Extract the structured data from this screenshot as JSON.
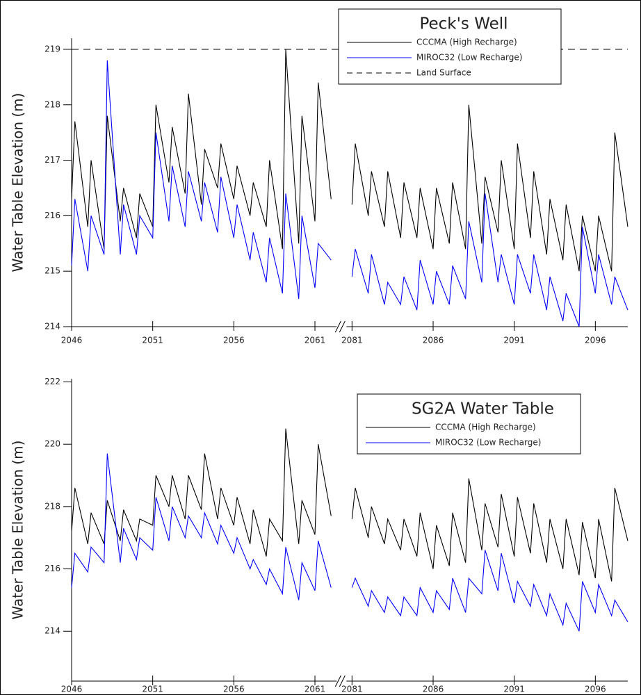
{
  "chart_data": [
    {
      "type": "line",
      "title": "Peck's Well",
      "y_label": "Water Table Elevation (m)",
      "x": [
        2046,
        2046.2,
        2047,
        2047.2,
        2048,
        2048.2,
        2049,
        2049.2,
        2050,
        2050.2,
        2051,
        2051.2,
        2052,
        2052.2,
        2053,
        2053.2,
        2054,
        2054.2,
        2055,
        2055.2,
        2056,
        2056.2,
        2057,
        2057.2,
        2058,
        2058.2,
        2059,
        2059.2,
        2060,
        2060.2,
        2061,
        2061.2,
        2062,
        null,
        2081,
        2081.2,
        2082,
        2082.2,
        2083,
        2083.2,
        2084,
        2084.2,
        2085,
        2085.2,
        2086,
        2086.2,
        2087,
        2087.2,
        2088,
        2088.2,
        2089,
        2089.2,
        2090,
        2090.2,
        2091,
        2091.2,
        2092,
        2092.2,
        2093,
        2093.2,
        2094,
        2094.2,
        2095,
        2095.2,
        2096,
        2096.2,
        2097,
        2097.2,
        2098
      ],
      "series": [
        {
          "name": "CCCMA (High Recharge)",
          "color": "#000000",
          "values": [
            216.3,
            217.7,
            215.8,
            217.0,
            215.4,
            217.8,
            215.9,
            216.5,
            215.6,
            216.4,
            215.8,
            218.0,
            216.6,
            217.6,
            216.4,
            218.2,
            216.2,
            217.2,
            216.5,
            217.3,
            216.3,
            216.9,
            216.0,
            216.6,
            215.8,
            217.0,
            215.4,
            219.0,
            215.5,
            217.8,
            215.9,
            218.4,
            216.3,
            null,
            216.2,
            217.3,
            216.0,
            216.8,
            215.8,
            216.8,
            215.6,
            216.6,
            215.6,
            216.5,
            215.4,
            216.5,
            215.5,
            216.6,
            215.4,
            218.0,
            215.5,
            216.7,
            215.7,
            217.0,
            215.4,
            217.3,
            215.6,
            216.8,
            215.3,
            216.3,
            215.2,
            216.2,
            215.0,
            216.0,
            215.0,
            216.0,
            215.0,
            217.5,
            215.8
          ]
        },
        {
          "name": "MIROC32 (Low Recharge)",
          "color": "#0000ff",
          "values": [
            215.1,
            216.3,
            215.0,
            216.0,
            215.3,
            218.8,
            215.3,
            216.2,
            215.3,
            216.0,
            215.6,
            217.5,
            215.9,
            216.9,
            215.8,
            216.8,
            215.9,
            216.6,
            215.7,
            216.7,
            215.6,
            216.2,
            215.2,
            215.7,
            214.8,
            215.6,
            214.6,
            216.4,
            214.5,
            216.0,
            214.7,
            215.5,
            215.2,
            null,
            214.9,
            215.4,
            214.6,
            215.3,
            214.4,
            214.8,
            214.4,
            214.9,
            214.3,
            215.2,
            214.4,
            215.0,
            214.4,
            215.1,
            214.5,
            215.9,
            214.8,
            216.4,
            214.8,
            215.3,
            214.4,
            215.3,
            214.6,
            215.3,
            214.3,
            214.9,
            214.1,
            214.6,
            214.0,
            215.8,
            214.6,
            215.3,
            214.4,
            214.9,
            214.3
          ]
        }
      ],
      "hline": {
        "name": "Land Surface",
        "value": 219,
        "color": "#000000",
        "dashed": true
      },
      "xlim": [
        2046,
        2098
      ],
      "xbreak": [
        2062,
        2081
      ],
      "xticks": [
        2046,
        2051,
        2056,
        2061,
        2081,
        2086,
        2091,
        2096
      ],
      "ylim": [
        214,
        219.2
      ],
      "yticks": [
        214,
        215,
        216,
        217,
        218,
        219
      ],
      "legend": "upper-right"
    },
    {
      "type": "line",
      "title": "SG2A Water Table",
      "y_label": "Water Table Elevation (m)",
      "x": [
        2046,
        2046.2,
        2047,
        2047.2,
        2048,
        2048.2,
        2049,
        2049.2,
        2050,
        2050.2,
        2051,
        2051.2,
        2052,
        2052.2,
        2053,
        2053.2,
        2054,
        2054.2,
        2055,
        2055.2,
        2056,
        2056.2,
        2057,
        2057.2,
        2058,
        2058.2,
        2059,
        2059.2,
        2060,
        2060.2,
        2061,
        2061.2,
        2062,
        null,
        2081,
        2081.2,
        2082,
        2082.2,
        2083,
        2083.2,
        2084,
        2084.2,
        2085,
        2085.2,
        2086,
        2086.2,
        2087,
        2087.2,
        2088,
        2088.2,
        2089,
        2089.2,
        2090,
        2090.2,
        2091,
        2091.2,
        2092,
        2092.2,
        2093,
        2093.2,
        2094,
        2094.2,
        2095,
        2095.2,
        2096,
        2096.2,
        2097,
        2097.2,
        2098
      ],
      "series": [
        {
          "name": "CCCMA (High Recharge)",
          "color": "#000000",
          "values": [
            217.2,
            218.6,
            216.8,
            217.8,
            216.8,
            218.2,
            216.9,
            217.9,
            216.9,
            217.6,
            217.4,
            219.0,
            218.0,
            219.0,
            217.6,
            219.0,
            217.9,
            219.7,
            217.6,
            218.6,
            217.4,
            218.3,
            216.8,
            217.9,
            216.4,
            217.6,
            216.9,
            220.5,
            216.8,
            218.2,
            217.1,
            220.0,
            217.7,
            null,
            217.6,
            218.6,
            217.0,
            218.0,
            216.8,
            217.6,
            216.6,
            217.6,
            216.4,
            217.8,
            216.0,
            217.4,
            216.1,
            217.8,
            216.2,
            218.9,
            216.6,
            218.1,
            216.7,
            218.4,
            216.4,
            218.3,
            216.5,
            218.1,
            216.2,
            217.6,
            216.0,
            217.6,
            215.8,
            217.5,
            215.7,
            217.6,
            215.6,
            218.6,
            216.9
          ]
        },
        {
          "name": "MIROC32 (Low Recharge)",
          "color": "#0000ff",
          "values": [
            215.4,
            216.5,
            215.9,
            216.7,
            216.2,
            219.7,
            216.2,
            217.3,
            216.3,
            217.0,
            216.6,
            218.3,
            216.9,
            218.0,
            217.0,
            217.7,
            217.0,
            217.8,
            216.8,
            217.4,
            216.5,
            217.0,
            216.0,
            216.3,
            215.5,
            216.0,
            215.2,
            216.7,
            215.0,
            216.2,
            215.3,
            216.9,
            215.4,
            null,
            215.4,
            215.7,
            214.8,
            215.3,
            214.6,
            215.1,
            214.5,
            215.1,
            214.5,
            215.4,
            214.6,
            215.3,
            214.7,
            215.7,
            214.6,
            215.7,
            215.2,
            216.6,
            215.3,
            216.5,
            214.9,
            215.6,
            214.8,
            215.5,
            214.5,
            215.2,
            214.2,
            214.9,
            214.0,
            215.6,
            214.6,
            215.5,
            214.5,
            215.0,
            214.3
          ]
        }
      ],
      "xlim": [
        2046,
        2098
      ],
      "xbreak": [
        2062,
        2081
      ],
      "xticks": [
        2046,
        2051,
        2056,
        2061,
        2081,
        2086,
        2091,
        2096
      ],
      "ylim": [
        212.4,
        222.1
      ],
      "yticks": [
        214,
        216,
        218,
        220,
        222
      ],
      "legend": "upper-right"
    }
  ]
}
